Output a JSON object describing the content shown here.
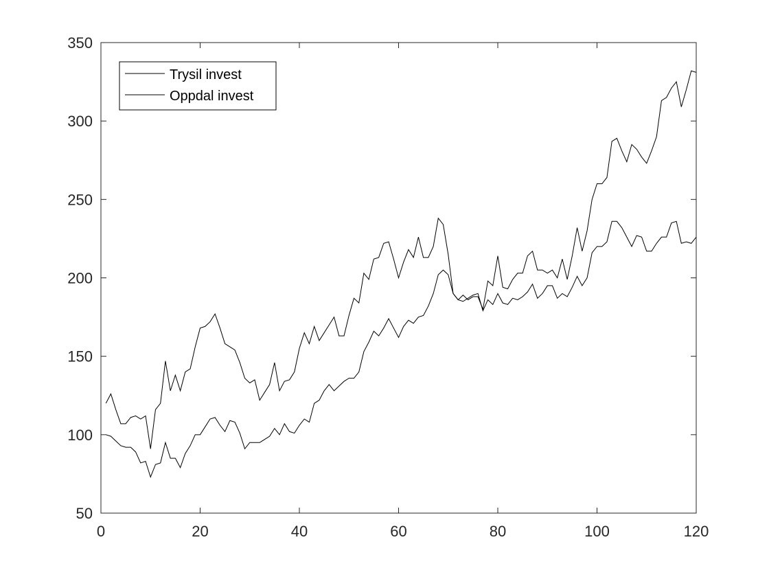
{
  "chart_data": {
    "type": "line",
    "title": "",
    "xlabel": "",
    "ylabel": "",
    "xlim": [
      0,
      120
    ],
    "ylim": [
      50,
      350
    ],
    "xticks": [
      0,
      20,
      40,
      60,
      80,
      100,
      120
    ],
    "yticks": [
      50,
      100,
      150,
      200,
      250,
      300,
      350
    ],
    "xtick_labels": [
      "0",
      "20",
      "40",
      "60",
      "80",
      "100",
      "120"
    ],
    "ytick_labels": [
      "50",
      "100",
      "150",
      "200",
      "250",
      "300",
      "350"
    ],
    "grid": false,
    "legend_position": "top-left",
    "line_color": "#000000",
    "series": [
      {
        "name": "Trysil invest",
        "x_start": 1,
        "values": [
          120,
          126,
          116,
          107,
          107,
          111,
          112,
          110,
          112,
          91,
          116,
          120,
          147,
          128,
          138,
          128,
          140,
          142,
          156,
          168,
          169,
          172,
          177,
          168,
          158,
          156,
          154,
          146,
          136,
          133,
          135,
          122,
          127,
          132,
          146,
          128,
          134,
          135,
          140,
          155,
          165,
          158,
          169,
          160,
          165,
          170,
          175,
          163,
          163,
          176,
          187,
          184,
          203,
          199,
          212,
          213,
          222,
          223,
          212,
          200,
          210,
          218,
          213,
          226,
          213,
          213,
          220,
          238,
          234,
          215,
          190,
          186,
          189,
          186,
          188,
          188,
          180,
          198,
          195,
          214,
          194,
          193,
          199,
          203,
          203,
          214,
          217,
          205,
          205,
          203,
          205,
          200,
          212,
          199,
          214,
          232,
          217,
          230,
          250,
          260,
          260,
          264,
          287,
          289,
          281,
          274,
          285,
          282,
          277,
          273,
          281,
          290,
          313,
          315,
          321,
          325,
          309,
          320,
          332,
          331
        ]
      },
      {
        "name": "Oppdal invest",
        "x_start": 1,
        "values": [
          100,
          99,
          96,
          93,
          92,
          92,
          89,
          82,
          83,
          73,
          81,
          82,
          95,
          85,
          85,
          79,
          88,
          93,
          100,
          100,
          105,
          110,
          111,
          106,
          102,
          109,
          108,
          101,
          91,
          95,
          95,
          95,
          97,
          99,
          104,
          100,
          107,
          102,
          101,
          106,
          110,
          108,
          120,
          122,
          128,
          132,
          128,
          131,
          134,
          136,
          136,
          140,
          153,
          159,
          166,
          163,
          168,
          174,
          168,
          162,
          169,
          173,
          171,
          175,
          176,
          182,
          190,
          202,
          205,
          202,
          190,
          186,
          185,
          187,
          189,
          190,
          179,
          186,
          183,
          190,
          184,
          183,
          187,
          186,
          188,
          191,
          196,
          187,
          190,
          195,
          195,
          187,
          190,
          188,
          194,
          201,
          195,
          200,
          216,
          220,
          220,
          223,
          236,
          236,
          232,
          226,
          220,
          227,
          226,
          217,
          217,
          222,
          226,
          226,
          235,
          236,
          222,
          223,
          222,
          226
        ]
      }
    ]
  }
}
